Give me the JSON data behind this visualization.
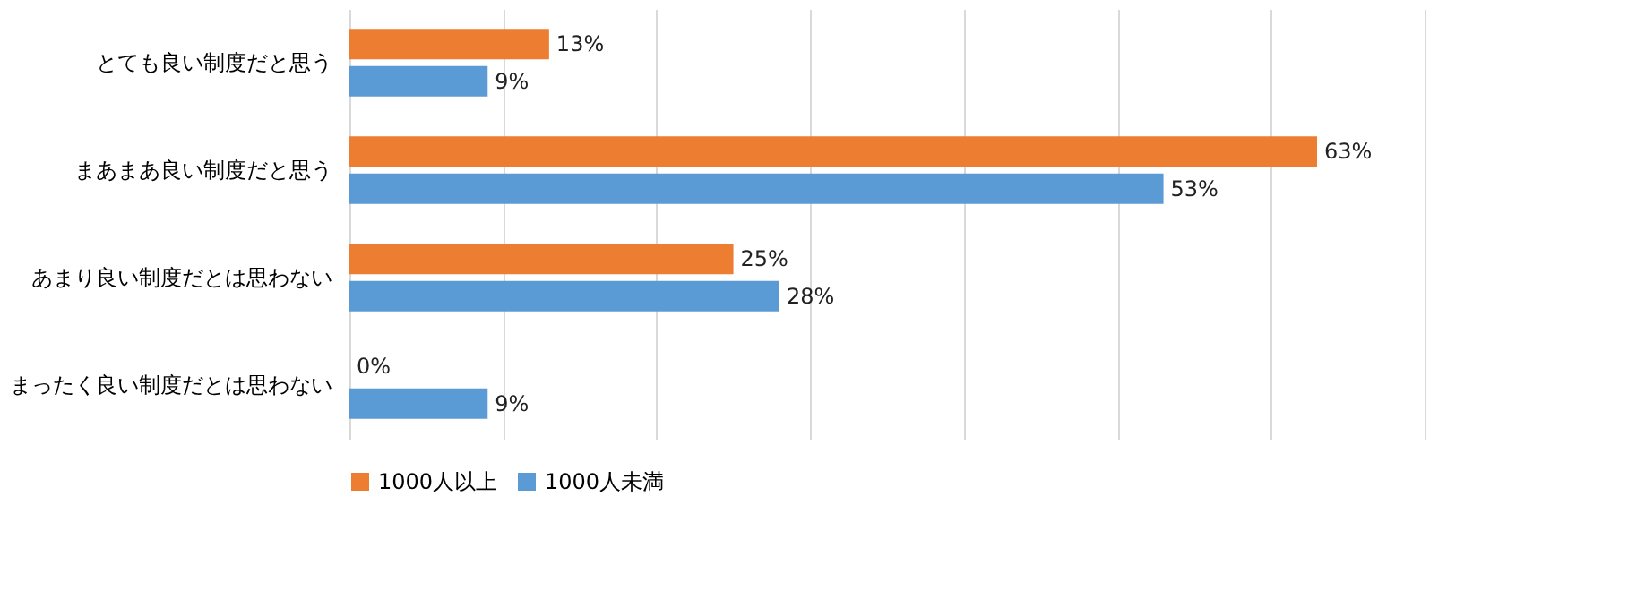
{
  "chart_data": {
    "type": "bar",
    "orientation": "horizontal",
    "categories": [
      "とても良い制度だと思う",
      "まあまあ良い制度だと思う",
      "あまり良い制度だとは思わない",
      "まったく良い制度だとは思わない"
    ],
    "series": [
      {
        "name": "1000人以上",
        "color": "#ed7d31",
        "values": [
          13,
          63,
          25,
          0
        ],
        "value_labels": [
          "13%",
          "63%",
          "25%",
          "0%"
        ]
      },
      {
        "name": "1000人未満",
        "color": "#5b9bd5",
        "values": [
          9,
          53,
          28,
          9
        ],
        "value_labels": [
          "9%",
          "53%",
          "28%",
          "9%"
        ]
      }
    ],
    "xlim": [
      0,
      70
    ],
    "xticks": [
      {
        "value": 0,
        "label": null
      },
      {
        "value": 10,
        "label": null
      },
      {
        "value": 20,
        "label": null
      },
      {
        "value": 30,
        "label": null
      },
      {
        "value": 40,
        "label": null
      },
      {
        "value": 50,
        "label": null
      },
      {
        "value": 60,
        "label": null
      },
      {
        "value": 70,
        "label": null
      }
    ],
    "tick_labels": "y",
    "grid": "x",
    "legend": "bottom"
  }
}
